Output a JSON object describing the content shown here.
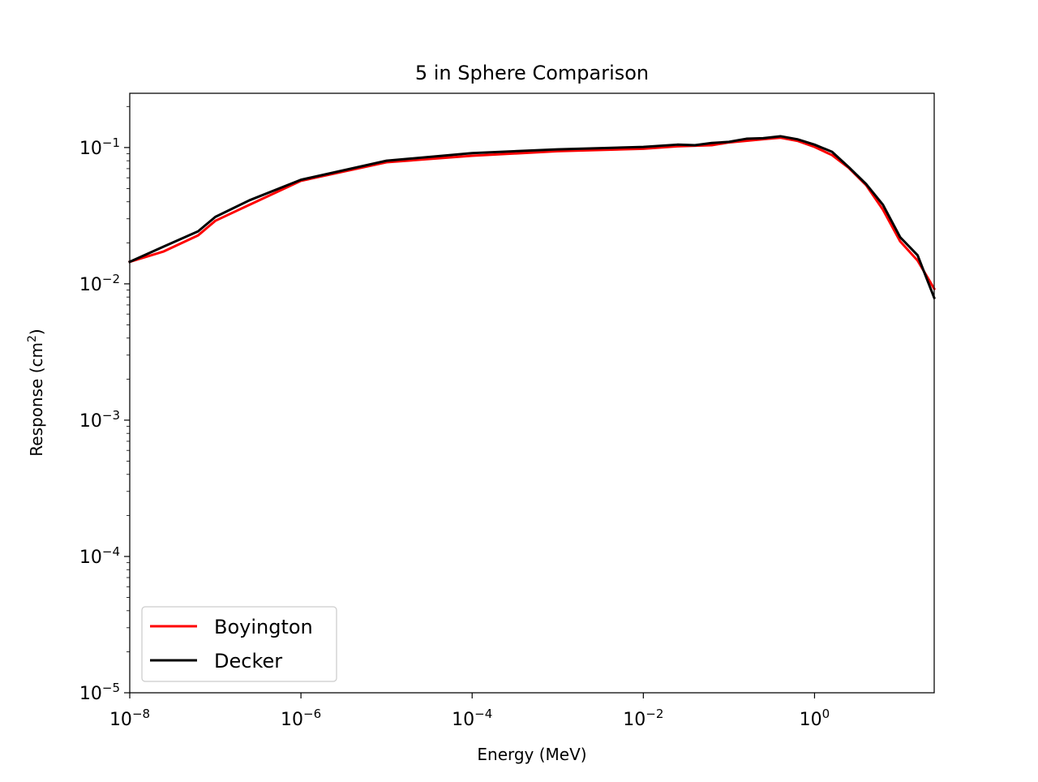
{
  "chart_data": {
    "type": "line",
    "title": "5 in Sphere Comparison",
    "xlabel": "Energy (MeV)",
    "ylabel": "Response (cm",
    "ylabel_superscript": "2",
    "ylabel_suffix": ")",
    "x_scale": "log",
    "y_scale": "log",
    "xlim": [
      1e-08,
      25
    ],
    "ylim": [
      1e-05,
      0.25
    ],
    "x_ticks": [
      {
        "base": "10",
        "exp": "−8",
        "value": 1e-08
      },
      {
        "base": "10",
        "exp": "−6",
        "value": 1e-06
      },
      {
        "base": "10",
        "exp": "−4",
        "value": 0.0001
      },
      {
        "base": "10",
        "exp": "−2",
        "value": 0.01
      },
      {
        "base": "10",
        "exp": "0",
        "value": 1
      }
    ],
    "y_ticks": [
      {
        "base": "10",
        "exp": "−1",
        "value": 0.1
      },
      {
        "base": "10",
        "exp": "−2",
        "value": 0.01
      },
      {
        "base": "10",
        "exp": "−3",
        "value": 0.001
      },
      {
        "base": "10",
        "exp": "−4",
        "value": 0.0001
      },
      {
        "base": "10",
        "exp": "−5",
        "value": 1e-05
      }
    ],
    "grid": false,
    "legend_position": "lower-left",
    "series": [
      {
        "name": "Boyington",
        "color": "#ff0000",
        "x": [
          1e-08,
          2.5e-08,
          6.3e-08,
          1e-07,
          2.5e-07,
          1e-06,
          1e-05,
          0.0001,
          0.001,
          0.01,
          0.025,
          0.063,
          0.1,
          0.25,
          0.4,
          0.63,
          1.0,
          1.6,
          2.5,
          4.0,
          6.3,
          10.0,
          16.0,
          25.0
        ],
        "y": [
          0.0145,
          0.0173,
          0.0227,
          0.029,
          0.038,
          0.057,
          0.078,
          0.087,
          0.094,
          0.098,
          0.102,
          0.104,
          0.109,
          0.115,
          0.118,
          0.112,
          0.101,
          0.088,
          0.071,
          0.053,
          0.035,
          0.0205,
          0.0148,
          0.0092
        ]
      },
      {
        "name": "Decker",
        "color": "#000000",
        "x": [
          1e-08,
          2.5e-08,
          6.3e-08,
          1e-07,
          2.5e-07,
          1e-06,
          1e-05,
          0.0001,
          0.001,
          0.01,
          0.025,
          0.04,
          0.063,
          0.1,
          0.16,
          0.25,
          0.4,
          0.63,
          1.0,
          1.6,
          2.5,
          4.0,
          6.3,
          10.0,
          16.0,
          25.0
        ],
        "y": [
          0.0145,
          0.0188,
          0.0243,
          0.031,
          0.041,
          0.058,
          0.08,
          0.091,
          0.097,
          0.101,
          0.105,
          0.104,
          0.108,
          0.11,
          0.116,
          0.117,
          0.121,
          0.115,
          0.105,
          0.093,
          0.072,
          0.054,
          0.038,
          0.022,
          0.0162,
          0.0079
        ]
      }
    ]
  }
}
